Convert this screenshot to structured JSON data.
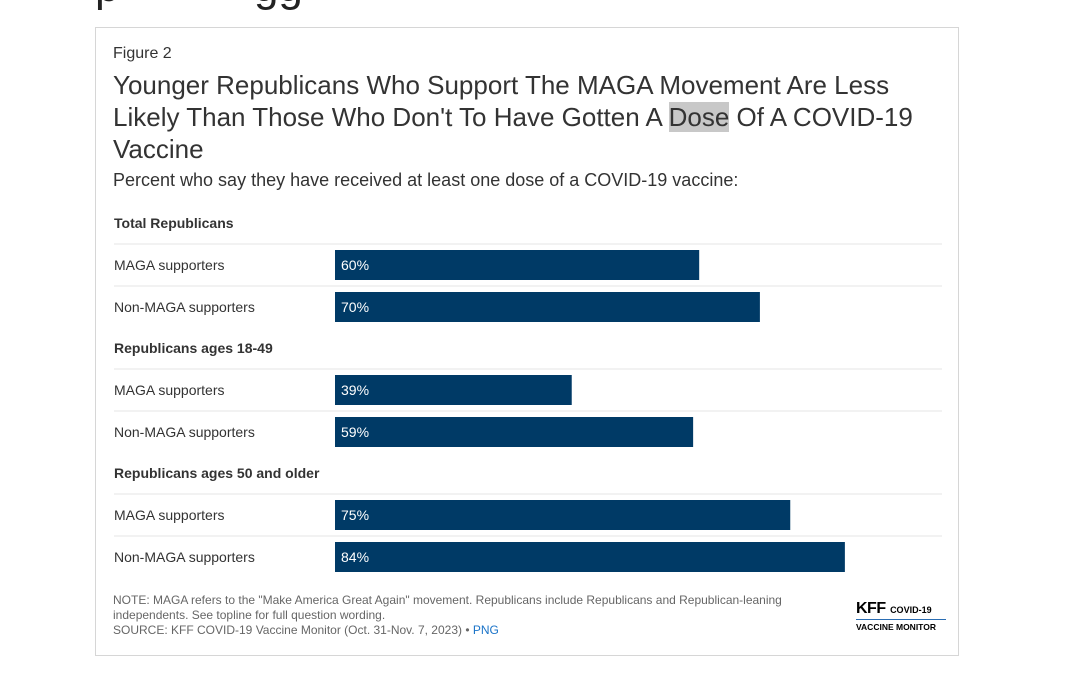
{
  "figure_label": "Figure 2",
  "title_parts": [
    "Younger Republicans Who Support The MAGA Movement Are Less Likely Than Those Who Don't To Have Gotten A ",
    "Dose",
    " Of A COVID-19 Vaccine"
  ],
  "subtitle": "Percent who say they have received at least one dose of a COVID-19 vaccine:",
  "chart_data": {
    "type": "bar",
    "orientation": "horizontal",
    "xlim": [
      0,
      100
    ],
    "bar_color": "#003a66",
    "grid": false,
    "groups": [
      {
        "name": "Total Republicans",
        "rows": [
          {
            "label": "MAGA supporters",
            "value": 60,
            "text": "60%"
          },
          {
            "label": "Non-MAGA supporters",
            "value": 70,
            "text": "70%"
          }
        ]
      },
      {
        "name": "Republicans ages 18-49",
        "rows": [
          {
            "label": "MAGA supporters",
            "value": 39,
            "text": "39%"
          },
          {
            "label": "Non-MAGA supporters",
            "value": 59,
            "text": "59%"
          }
        ]
      },
      {
        "name": "Republicans ages 50 and older",
        "rows": [
          {
            "label": "MAGA supporters",
            "value": 75,
            "text": "75%"
          },
          {
            "label": "Non-MAGA supporters",
            "value": 84,
            "text": "84%"
          }
        ]
      }
    ]
  },
  "note": "NOTE: MAGA refers to the \"Make America Great Again\" movement. Republicans include Republicans and Republican-leaning independents. See topline for full question wording.",
  "source": "SOURCE: KFF COVID-19 Vaccine Monitor (Oct. 31-Nov. 7, 2023) •",
  "png_link": "PNG",
  "logo": {
    "brand": "KFF",
    "line1": "COVID-19",
    "line2": "VACCINE MONITOR"
  }
}
